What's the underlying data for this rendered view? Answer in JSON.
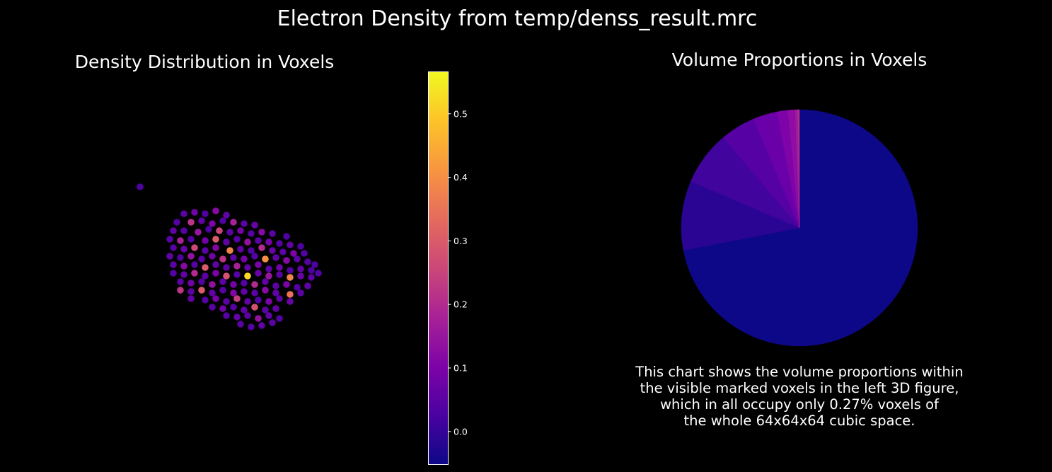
{
  "figure": {
    "title": "Electron Density from temp/denss_result.mrc",
    "background": "#000000"
  },
  "chart_data": [
    {
      "type": "scatter",
      "title": "Density Distribution in Voxels",
      "projection": "3d",
      "axes_visible": false,
      "colormap": "plasma",
      "colorbar": {
        "range": [
          -0.052,
          0.566
        ],
        "ticks": [
          0.0,
          0.1,
          0.2,
          0.3,
          0.4,
          0.5
        ],
        "tick_labels": [
          "0.0",
          "0.1",
          "0.2",
          "0.3",
          "0.4",
          "0.5"
        ]
      },
      "xlim": [
        0,
        64
      ],
      "ylim": [
        0,
        64
      ],
      "points": [
        [
          7.6,
          8.5,
          0.03
        ],
        [
          20,
          18,
          0.05
        ],
        [
          23,
          17.5,
          0.08
        ],
        [
          26,
          18,
          0.03
        ],
        [
          29,
          17,
          0.12
        ],
        [
          32,
          18.5,
          0.06
        ],
        [
          18,
          21,
          0.04
        ],
        [
          22,
          21,
          0.22
        ],
        [
          25,
          20.5,
          0.06
        ],
        [
          28,
          21.5,
          0.1
        ],
        [
          31,
          20.5,
          0.03
        ],
        [
          34,
          21,
          0.18
        ],
        [
          37,
          21.5,
          0.05
        ],
        [
          40,
          22,
          0.07
        ],
        [
          17,
          24,
          0.06
        ],
        [
          20,
          24,
          0.04
        ],
        [
          24,
          24.5,
          0.15
        ],
        [
          27,
          23.5,
          0.03
        ],
        [
          30,
          24,
          0.25
        ],
        [
          33,
          24.5,
          0.05
        ],
        [
          36,
          24,
          0.09
        ],
        [
          39,
          25,
          0.04
        ],
        [
          42,
          24.5,
          0.12
        ],
        [
          45,
          25,
          0.05
        ],
        [
          49,
          26,
          0.03
        ],
        [
          16,
          27,
          0.05
        ],
        [
          19,
          27.5,
          0.18
        ],
        [
          22,
          27,
          0.04
        ],
        [
          26,
          27.5,
          0.08
        ],
        [
          29,
          27,
          0.3
        ],
        [
          32,
          28,
          0.06
        ],
        [
          35,
          27,
          0.04
        ],
        [
          38,
          28,
          0.14
        ],
        [
          41,
          27.5,
          0.05
        ],
        [
          44,
          28,
          0.09
        ],
        [
          47,
          28.5,
          0.04
        ],
        [
          50,
          29,
          0.06
        ],
        [
          53,
          29.5,
          0.03
        ],
        [
          17,
          30,
          0.04
        ],
        [
          20,
          30.5,
          0.07
        ],
        [
          23,
          30,
          0.26
        ],
        [
          26,
          31,
          0.05
        ],
        [
          29,
          30,
          0.11
        ],
        [
          33,
          31,
          0.38
        ],
        [
          36,
          30.5,
          0.06
        ],
        [
          39,
          31,
          0.04
        ],
        [
          42,
          30,
          0.2
        ],
        [
          45,
          31,
          0.07
        ],
        [
          48,
          31.5,
          0.05
        ],
        [
          51,
          32,
          0.1
        ],
        [
          54,
          32,
          0.04
        ],
        [
          16,
          33,
          0.06
        ],
        [
          19,
          33.5,
          0.03
        ],
        [
          22,
          33,
          0.14
        ],
        [
          25,
          34,
          0.05
        ],
        [
          28,
          33,
          0.08
        ],
        [
          31,
          34,
          0.22
        ],
        [
          34,
          33.5,
          0.05
        ],
        [
          37,
          34,
          0.09
        ],
        [
          40,
          33,
          0.04
        ],
        [
          43,
          34,
          0.4
        ],
        [
          46,
          33.5,
          0.06
        ],
        [
          49,
          34.5,
          0.12
        ],
        [
          52,
          34,
          0.05
        ],
        [
          55,
          35,
          0.04
        ],
        [
          57,
          36,
          0.03
        ],
        [
          17,
          36,
          0.05
        ],
        [
          20,
          36.5,
          0.12
        ],
        [
          23,
          36,
          0.04
        ],
        [
          26,
          37,
          0.3
        ],
        [
          29,
          36,
          0.06
        ],
        [
          32,
          37,
          0.05
        ],
        [
          35,
          36.5,
          0.18
        ],
        [
          38,
          37,
          0.06
        ],
        [
          41,
          36,
          0.1
        ],
        [
          44,
          37.5,
          0.05
        ],
        [
          47,
          37,
          0.08
        ],
        [
          50,
          38,
          0.04
        ],
        [
          53,
          37.5,
          0.06
        ],
        [
          56,
          38,
          0.03
        ],
        [
          17,
          39,
          0.04
        ],
        [
          20,
          39.5,
          0.06
        ],
        [
          23,
          39,
          0.2
        ],
        [
          26,
          40,
          0.05
        ],
        [
          29,
          39,
          0.1
        ],
        [
          32,
          40,
          0.28
        ],
        [
          35,
          39.5,
          0.04
        ],
        [
          38,
          40,
          0.52
        ],
        [
          41,
          39,
          0.07
        ],
        [
          44,
          40,
          0.15
        ],
        [
          47,
          39.5,
          0.05
        ],
        [
          50,
          40.5,
          0.38
        ],
        [
          53,
          40,
          0.07
        ],
        [
          56,
          40.5,
          0.05
        ],
        [
          58,
          39,
          0.04
        ],
        [
          19,
          42,
          0.05
        ],
        [
          22,
          42.5,
          0.08
        ],
        [
          25,
          42,
          0.04
        ],
        [
          28,
          43,
          0.14
        ],
        [
          31,
          42,
          0.05
        ],
        [
          34,
          43,
          0.09
        ],
        [
          37,
          42.5,
          0.04
        ],
        [
          40,
          43,
          0.2
        ],
        [
          43,
          42,
          0.06
        ],
        [
          46,
          43.5,
          0.05
        ],
        [
          49,
          43,
          0.1
        ],
        [
          52,
          44,
          0.04
        ],
        [
          55,
          43.5,
          0.06
        ],
        [
          19,
          45,
          0.22
        ],
        [
          22,
          45.5,
          0.05
        ],
        [
          25,
          45,
          0.3
        ],
        [
          28,
          46,
          0.06
        ],
        [
          31,
          45,
          0.04
        ],
        [
          34,
          46,
          0.11
        ],
        [
          37,
          45.5,
          0.06
        ],
        [
          40,
          46,
          0.05
        ],
        [
          43,
          45,
          0.12
        ],
        [
          46,
          46,
          0.06
        ],
        [
          50,
          46.5,
          0.35
        ],
        [
          53,
          46,
          0.05
        ],
        [
          22,
          48,
          0.06
        ],
        [
          26,
          48.5,
          0.04
        ],
        [
          29,
          48,
          0.09
        ],
        [
          32,
          49,
          0.05
        ],
        [
          35,
          48,
          0.24
        ],
        [
          38,
          49,
          0.06
        ],
        [
          41,
          48.5,
          0.04
        ],
        [
          44,
          49,
          0.1
        ],
        [
          47,
          48,
          0.05
        ],
        [
          50,
          49,
          0.07
        ],
        [
          28,
          51,
          0.05
        ],
        [
          31,
          51.5,
          0.08
        ],
        [
          34,
          51,
          0.04
        ],
        [
          37,
          52,
          0.06
        ],
        [
          40,
          51,
          0.28
        ],
        [
          43,
          52,
          0.05
        ],
        [
          46,
          51.5,
          0.06
        ],
        [
          32,
          54,
          0.04
        ],
        [
          35,
          54.5,
          0.06
        ],
        [
          38,
          54,
          0.05
        ],
        [
          41,
          55,
          0.14
        ],
        [
          44,
          54,
          0.06
        ],
        [
          47,
          55,
          0.04
        ],
        [
          36,
          57,
          0.05
        ],
        [
          39,
          58,
          0.04
        ],
        [
          42,
          57.5,
          0.06
        ],
        [
          45,
          56.5,
          0.05
        ]
      ]
    },
    {
      "type": "pie",
      "title": "Volume Proportions in Voxels",
      "start_angle": 90,
      "direction": "clockwise",
      "values": [
        72.0,
        9.5,
        7.4,
        4.8,
        3.3,
        1.5,
        1.0,
        0.36,
        0.2
      ],
      "colors": [
        "#0d0887",
        "#2a0593",
        "#41049d",
        "#5601a4",
        "#6a00a8",
        "#7e03a8",
        "#8f0da4",
        "#a11b9b",
        "#b52f8c"
      ],
      "annotation": [
        "This chart shows the volume proportions within",
        "the visible marked voxels in the left 3D figure,",
        "which in all occupy only 0.27% voxels of",
        "the whole 64x64x64 cubic space."
      ]
    }
  ]
}
